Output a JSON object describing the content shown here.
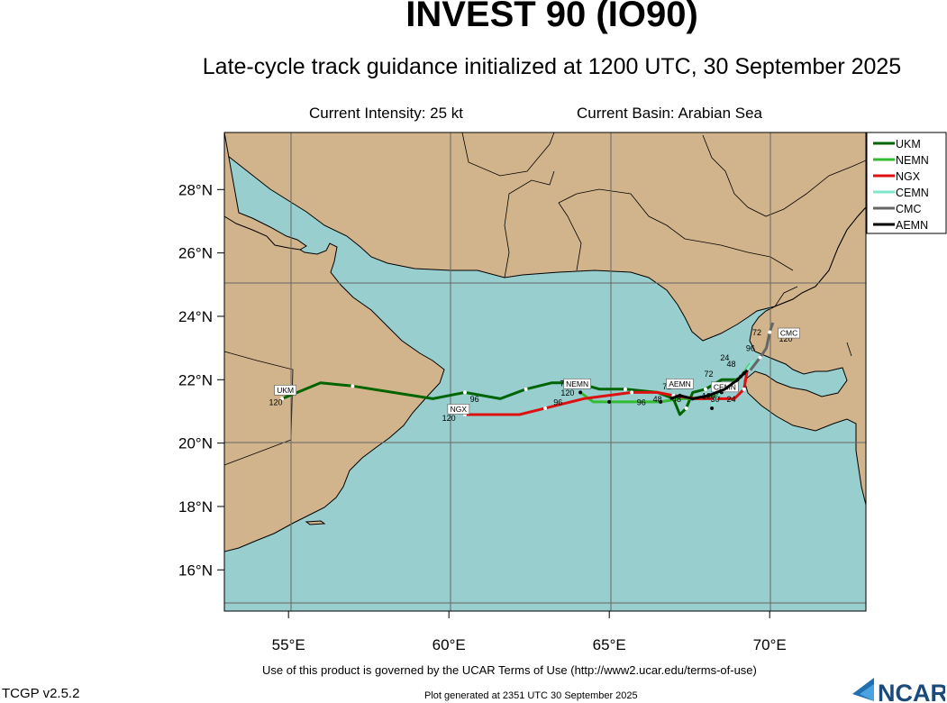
{
  "header": {
    "title": "INVEST 90 (IO90)",
    "subtitle": "Late-cycle track guidance initialized at 1200 UTC, 30 September 2025",
    "intensity": "Current Intensity: 25 kt",
    "basin": "Current Basin: Arabian Sea"
  },
  "footer": {
    "terms": "Use of this product is governed by the UCAR Terms of Use (http://www2.ucar.edu/terms-of-use)",
    "generated": "Plot generated at 2351 UTC   30 September 2025",
    "version": "TCGP v2.5.2",
    "logo": "NCAR"
  },
  "colors": {
    "ocean": "#99cecf",
    "land": "#d2b48c",
    "grid": "#666666",
    "coast": "#000000"
  },
  "chart_data": {
    "type": "map",
    "lon_range": [
      53.0,
      73.0
    ],
    "lat_range": [
      14.7,
      29.8
    ],
    "lon_ticks": [
      {
        "value": 55,
        "label": "55°E"
      },
      {
        "value": 60,
        "label": "60°E"
      },
      {
        "value": 65,
        "label": "65°E"
      },
      {
        "value": 70,
        "label": "70°E"
      }
    ],
    "lat_ticks": [
      {
        "value": 16,
        "label": "16°N"
      },
      {
        "value": 18,
        "label": "18°N"
      },
      {
        "value": 20,
        "label": "20°N"
      },
      {
        "value": 22,
        "label": "22°N"
      },
      {
        "value": 24,
        "label": "24°N"
      },
      {
        "value": 26,
        "label": "26°N"
      },
      {
        "value": 28,
        "label": "28°N"
      }
    ],
    "legend_position": "top-right",
    "series": [
      {
        "name": "UKM",
        "color": "#006400",
        "box_label": "UKM",
        "points": [
          [
            69.3,
            22.3
          ],
          [
            69.0,
            22.0
          ],
          [
            68.5,
            22.0
          ],
          [
            68.0,
            21.7
          ],
          [
            67.6,
            21.6
          ],
          [
            67.4,
            21.1
          ],
          [
            67.2,
            20.9
          ],
          [
            67.0,
            21.4
          ],
          [
            66.5,
            21.6
          ],
          [
            65.5,
            21.7
          ],
          [
            64.7,
            21.7
          ],
          [
            64.0,
            21.9
          ],
          [
            63.2,
            21.9
          ],
          [
            62.4,
            21.7
          ],
          [
            61.6,
            21.4
          ],
          [
            60.5,
            21.6
          ],
          [
            59.5,
            21.4
          ],
          [
            57.0,
            21.8
          ],
          [
            56.0,
            21.9
          ],
          [
            54.8,
            21.4
          ]
        ],
        "tau_labels": [
          {
            "text": "96",
            "lon": 60.8,
            "lat": 21.3
          },
          {
            "text": "120",
            "lon": 54.6,
            "lat": 21.2
          }
        ],
        "box_pos": [
          54.9,
          21.6
        ]
      },
      {
        "name": "NEMN",
        "color": "#33bb33",
        "box_label": "NEMN",
        "points": [
          [
            69.4,
            22.5
          ],
          [
            69.1,
            22.1
          ],
          [
            68.7,
            21.8
          ],
          [
            68.4,
            21.5
          ],
          [
            68.0,
            21.4
          ],
          [
            67.6,
            21.4
          ],
          [
            67.2,
            21.4
          ],
          [
            66.6,
            21.3
          ],
          [
            65.9,
            21.3
          ],
          [
            65.0,
            21.3
          ],
          [
            64.5,
            21.3
          ],
          [
            64.1,
            21.6
          ]
        ],
        "tau_labels": [
          {
            "text": "72",
            "lon": 63.6,
            "lat": 21.8
          },
          {
            "text": "120",
            "lon": 63.7,
            "lat": 21.5
          },
          {
            "text": "96",
            "lon": 66.0,
            "lat": 21.2
          }
        ],
        "box_pos": [
          64.0,
          21.8
        ]
      },
      {
        "name": "NGX",
        "color": "#dd1111",
        "box_label": "NGX",
        "points": [
          [
            69.3,
            22.3
          ],
          [
            69.2,
            21.7
          ],
          [
            68.9,
            21.4
          ],
          [
            68.3,
            21.4
          ],
          [
            67.7,
            21.4
          ],
          [
            67.0,
            21.5
          ],
          [
            66.5,
            21.6
          ],
          [
            65.7,
            21.6
          ],
          [
            64.2,
            21.4
          ],
          [
            63.0,
            21.1
          ],
          [
            62.2,
            20.9
          ],
          [
            60.5,
            20.9
          ]
        ],
        "tau_labels": [
          {
            "text": "120",
            "lon": 60.0,
            "lat": 20.7
          },
          {
            "text": "96",
            "lon": 63.4,
            "lat": 21.2
          },
          {
            "text": "72",
            "lon": 66.8,
            "lat": 21.7
          }
        ],
        "box_pos": [
          60.3,
          21.0
        ]
      },
      {
        "name": "CEMN",
        "color": "#7fe6cc",
        "box_label": "CEMN",
        "points": [
          [
            69.5,
            22.6
          ],
          [
            69.2,
            22.2
          ],
          [
            68.9,
            21.9
          ],
          [
            68.5,
            21.6
          ],
          [
            68.3,
            21.4
          ],
          [
            68.2,
            21.1
          ]
        ],
        "tau_labels": [
          {
            "text": "120",
            "lon": 68.1,
            "lat": 21.4
          }
        ],
        "box_pos": [
          68.6,
          21.7
        ]
      },
      {
        "name": "CMC",
        "color": "#666666",
        "box_label": "CMC",
        "points": [
          [
            69.4,
            22.3
          ],
          [
            69.7,
            22.7
          ],
          [
            69.9,
            23.0
          ],
          [
            70.0,
            23.5
          ],
          [
            70.1,
            23.8
          ]
        ],
        "tau_labels": [
          {
            "text": "72",
            "lon": 69.6,
            "lat": 23.4
          },
          {
            "text": "96",
            "lon": 69.4,
            "lat": 22.9
          },
          {
            "text": "120",
            "lon": 70.5,
            "lat": 23.2
          }
        ],
        "box_pos": [
          70.6,
          23.4
        ]
      },
      {
        "name": "AEMN",
        "color": "#000000",
        "box_label": "AEMN",
        "points": [
          [
            69.3,
            22.3
          ],
          [
            69.0,
            22.0
          ],
          [
            68.6,
            21.7
          ],
          [
            68.1,
            21.5
          ],
          [
            67.6,
            21.4
          ],
          [
            67.2,
            21.5
          ],
          [
            66.9,
            21.4
          ]
        ],
        "tau_labels": [
          {
            "text": "24",
            "lon": 68.6,
            "lat": 22.6
          },
          {
            "text": "48",
            "lon": 68.8,
            "lat": 22.4
          },
          {
            "text": "72",
            "lon": 68.1,
            "lat": 22.1
          },
          {
            "text": "48",
            "lon": 66.5,
            "lat": 21.3
          },
          {
            "text": "48",
            "lon": 67.1,
            "lat": 21.3
          },
          {
            "text": "30",
            "lon": 68.3,
            "lat": 21.3
          },
          {
            "text": "24",
            "lon": 68.8,
            "lat": 21.3
          }
        ],
        "box_pos": [
          67.2,
          21.8
        ]
      }
    ]
  }
}
